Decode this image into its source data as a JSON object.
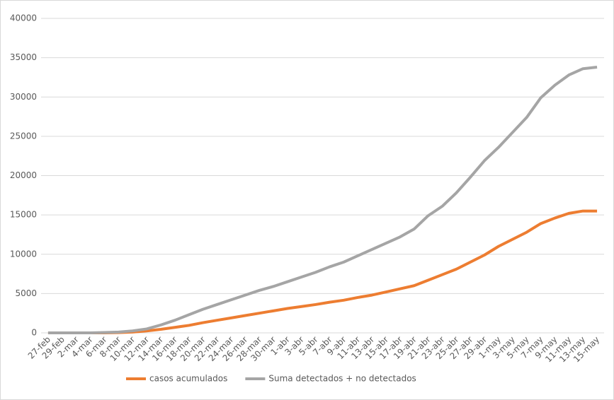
{
  "chart_data": {
    "type": "line",
    "categories": [
      "27-feb",
      "29-feb",
      "2-mar",
      "4-mar",
      "6-mar",
      "8-mar",
      "10-mar",
      "12-mar",
      "14-mar",
      "16-mar",
      "18-mar",
      "20-mar",
      "22-mar",
      "24-mar",
      "26-mar",
      "28-mar",
      "30-mar",
      "1-abr",
      "3-abr",
      "5-abr",
      "7-abr",
      "9-abr",
      "11-abr",
      "13-abr",
      "15-abr",
      "17-abr",
      "19-abr",
      "21-abr",
      "23-abr",
      "25-abr",
      "27-abr",
      "29-abr",
      "1-may",
      "3-may",
      "5-may",
      "7-may",
      "9-may",
      "11-may",
      "13-may",
      "15-may"
    ],
    "series": [
      {
        "name": "casos acumulados",
        "color": "#ed7d31",
        "values": [
          0,
          0,
          0,
          0,
          0,
          30,
          100,
          250,
          450,
          700,
          950,
          1300,
          1600,
          1900,
          2200,
          2500,
          2800,
          3100,
          3350,
          3600,
          3900,
          4150,
          4500,
          4800,
          5200,
          5600,
          6000,
          6700,
          7400,
          8100,
          9000,
          9900,
          11000,
          11900,
          12800,
          13900,
          14600,
          15200,
          15500,
          15500
        ]
      },
      {
        "name": "Suma detectados + no detectados",
        "color": "#a5a5a5",
        "values": [
          0,
          0,
          0,
          0,
          50,
          100,
          250,
          500,
          1000,
          1600,
          2300,
          3000,
          3600,
          4200,
          4800,
          5400,
          5900,
          6500,
          7100,
          7700,
          8400,
          9000,
          9800,
          10600,
          11400,
          12200,
          13200,
          14900,
          16100,
          17800,
          19800,
          21900,
          23600,
          25500,
          27400,
          29900,
          31500,
          32800,
          33600,
          33800
        ]
      }
    ],
    "ylim": [
      0,
      40000
    ],
    "yticks": [
      0,
      5000,
      10000,
      15000,
      20000,
      25000,
      30000,
      35000,
      40000
    ],
    "grid": true,
    "legend": "bottom"
  }
}
